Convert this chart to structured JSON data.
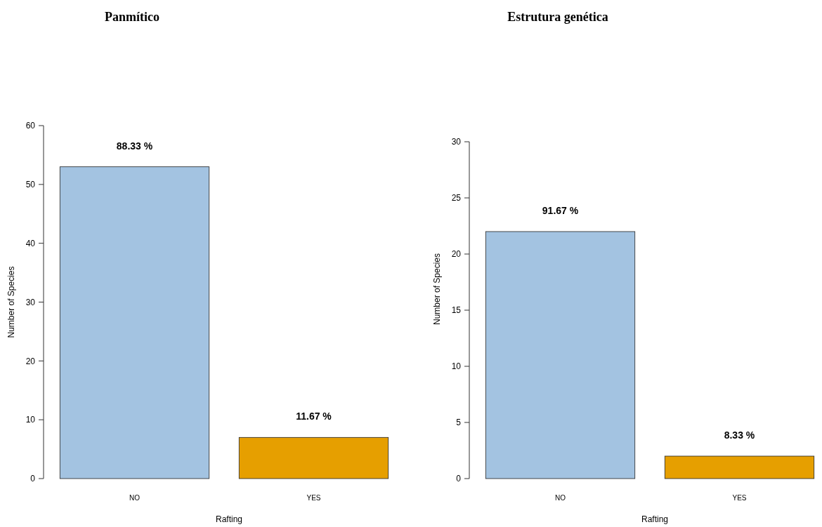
{
  "chart_data": [
    {
      "type": "bar",
      "title": "Panmítico",
      "xlabel": "Rafting",
      "ylabel": "Number of Species",
      "categories": [
        "NO",
        "YES"
      ],
      "values": [
        53,
        7
      ],
      "colors": [
        "#a3c3e1",
        "#e69f00"
      ],
      "annotations": [
        {
          "text": "88.33 %",
          "x": "NO",
          "y": 53
        },
        {
          "text": "11.67 %",
          "x": "YES",
          "y": 7
        }
      ],
      "ylim": [
        0,
        60
      ],
      "yticks": [
        0,
        10,
        20,
        30,
        40,
        50,
        60
      ],
      "grid": false
    },
    {
      "type": "bar",
      "title": "Estrutura genética",
      "xlabel": "Rafting",
      "ylabel": "Number of Species",
      "categories": [
        "NO",
        "YES"
      ],
      "values": [
        22,
        2
      ],
      "colors": [
        "#a3c3e1",
        "#e69f00"
      ],
      "annotations": [
        {
          "text": "91.67 %",
          "x": "NO",
          "y": 22
        },
        {
          "text": "8.33 %",
          "x": "YES",
          "y": 2
        }
      ],
      "ylim": [
        0,
        30
      ],
      "yticks": [
        0,
        5,
        10,
        15,
        20,
        25,
        30
      ],
      "grid": false
    }
  ]
}
